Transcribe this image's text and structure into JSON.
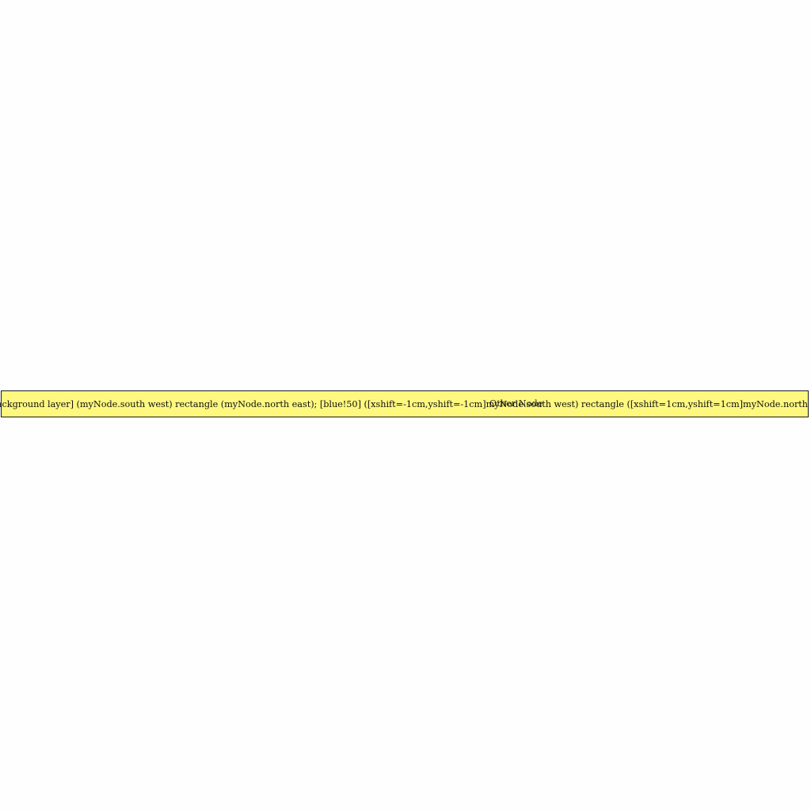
{
  "diagram": {
    "node": {
      "label": "[on background layer] (myNode.south west) rectangle (myNode.north east); [blue!50] ([xshift=-1cm,yshift=-1cm]myNode.south west) rectangle ([xshift=1cm,yshift=1cm]myNode.north east);",
      "fill_color": "#fff87f",
      "border_color": "#1a1a1a"
    },
    "overlay_node": {
      "label": "Other Node"
    }
  }
}
